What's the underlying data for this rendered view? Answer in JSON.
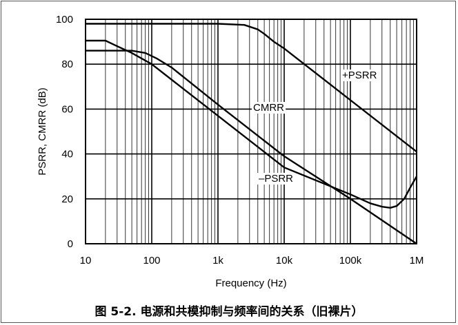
{
  "caption": "图 5-2. 电源和共模抑制与频率间的关系（旧裸片）",
  "chart_data": {
    "type": "line",
    "xlabel": "Frequency (Hz)",
    "ylabel": "PSRR, CMRR (dB)",
    "xscale": "log",
    "xlim": [
      10,
      1000000
    ],
    "ylim": [
      0,
      100
    ],
    "grid": true,
    "x_ticks": [
      {
        "value": 10,
        "label": "10"
      },
      {
        "value": 100,
        "label": "100"
      },
      {
        "value": 1000,
        "label": "1k"
      },
      {
        "value": 10000,
        "label": "10k"
      },
      {
        "value": 100000,
        "label": "100k"
      },
      {
        "value": 1000000,
        "label": "1M"
      }
    ],
    "y_ticks": [
      0,
      20,
      40,
      60,
      80,
      100
    ],
    "series": [
      {
        "name": "+PSRR",
        "points": [
          [
            10,
            98
          ],
          [
            1000,
            98
          ],
          [
            2500,
            97.5
          ],
          [
            4000,
            95.5
          ],
          [
            5000,
            93.5
          ],
          [
            7000,
            90
          ],
          [
            10000,
            87
          ],
          [
            100000,
            64
          ],
          [
            1000000,
            41
          ]
        ]
      },
      {
        "name": "CMRR",
        "points": [
          [
            10,
            90.5
          ],
          [
            20,
            90.5
          ],
          [
            30,
            88
          ],
          [
            50,
            85
          ],
          [
            100,
            80
          ],
          [
            1000,
            57
          ],
          [
            10000,
            34
          ],
          [
            100000,
            22
          ],
          [
            200000,
            18
          ],
          [
            300000,
            16.5
          ],
          [
            400000,
            16
          ],
          [
            500000,
            16.8
          ],
          [
            650000,
            20
          ],
          [
            800000,
            25
          ],
          [
            1000000,
            30
          ]
        ]
      },
      {
        "name": "–PSRR",
        "points": [
          [
            10,
            86
          ],
          [
            50,
            86
          ],
          [
            80,
            85
          ],
          [
            120,
            82.5
          ],
          [
            200,
            78.5
          ],
          [
            1000,
            62
          ],
          [
            10000,
            39
          ],
          [
            100000,
            20
          ],
          [
            1000000,
            0
          ]
        ]
      }
    ]
  },
  "annotations": {
    "psrr_plus": "+PSRR",
    "cmrr": "CMRR",
    "psrr_minus": "–PSRR"
  }
}
